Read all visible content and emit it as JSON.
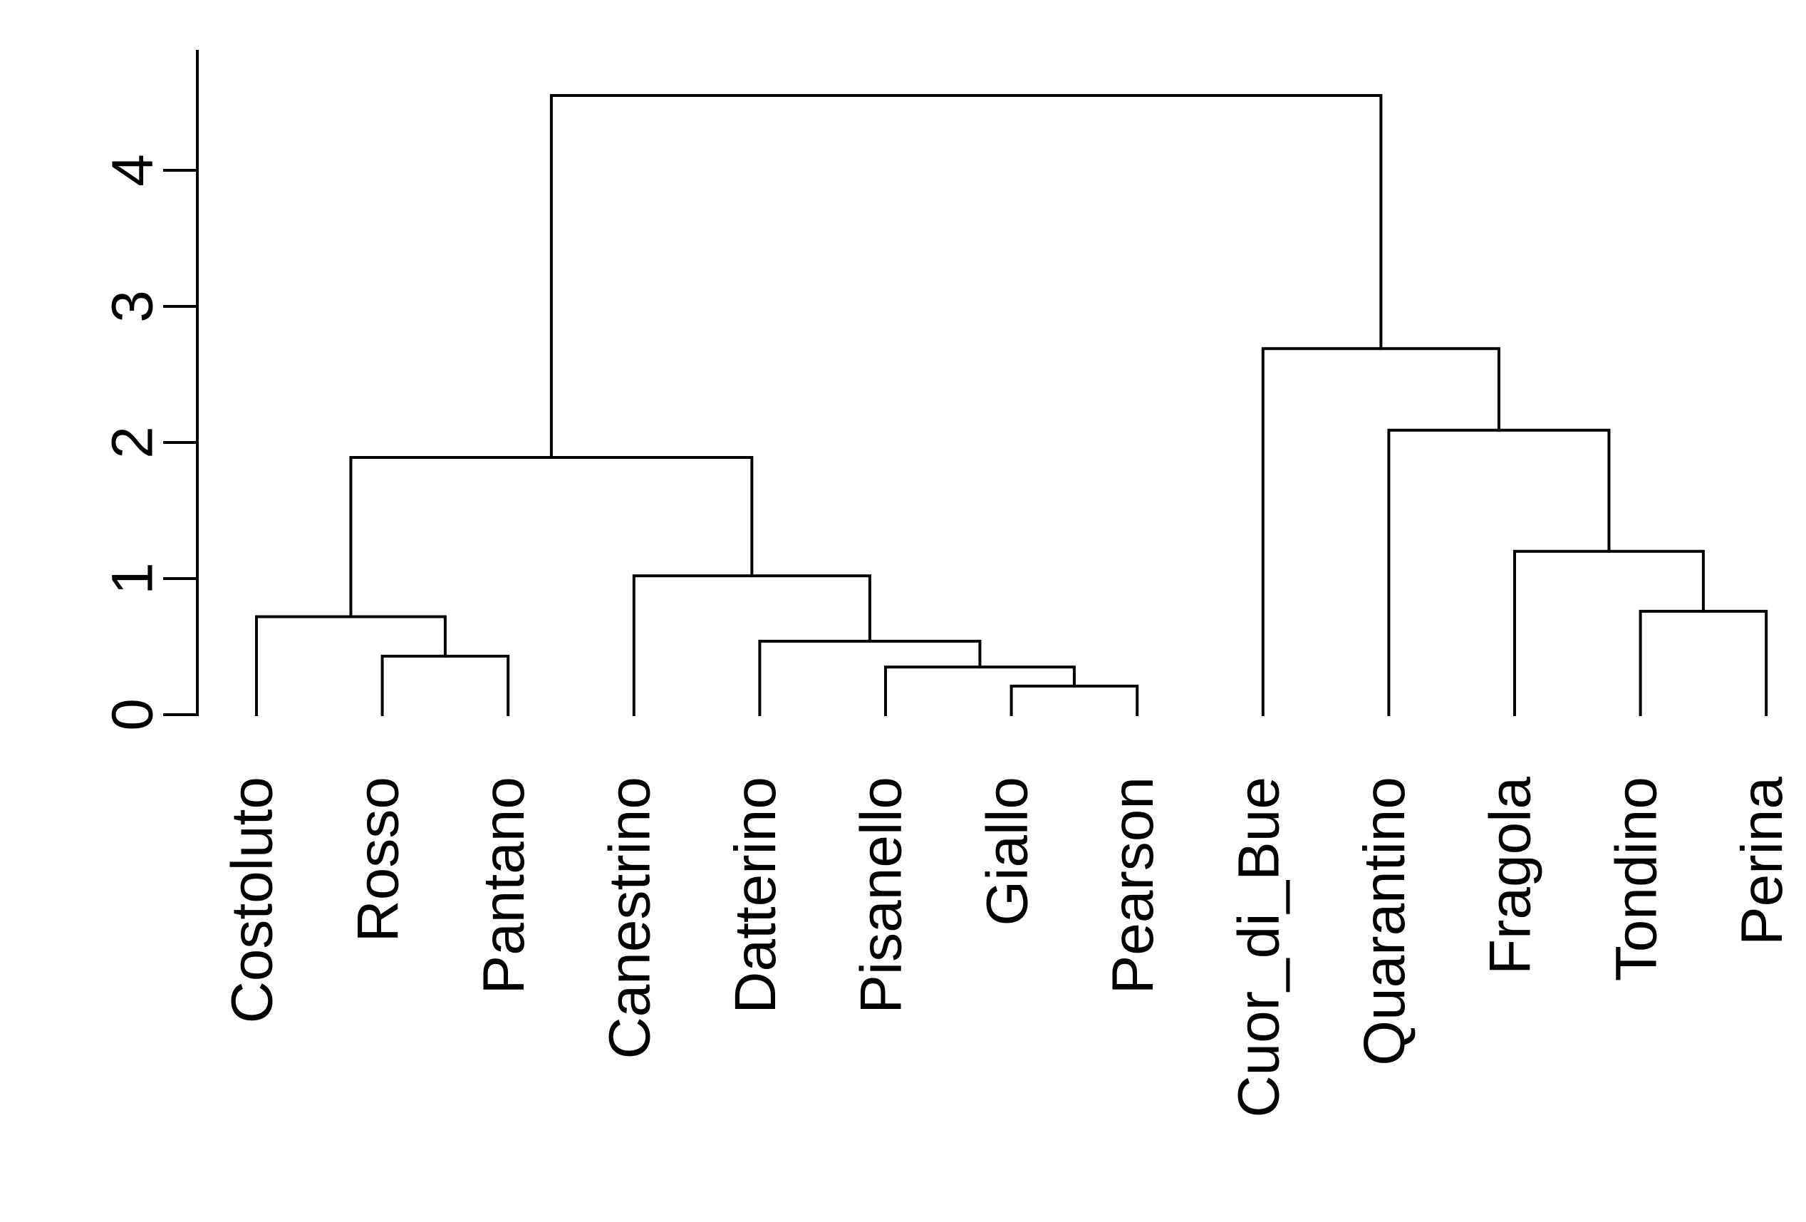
{
  "chart_data": {
    "type": "dendrogram",
    "title": "",
    "xlabel": "",
    "ylabel": "",
    "ylim": [
      0,
      4.9
    ],
    "y_ticks": [
      0,
      1,
      2,
      3,
      4
    ],
    "y_tick_labels": [
      "0",
      "1",
      "2",
      "3",
      "4"
    ],
    "leaves": [
      "Costoluto",
      "Rosso",
      "Pantano",
      "Canestrino",
      "Datterino",
      "Pisanello",
      "Giallo",
      "Pearson",
      "Cuor_di_Bue",
      "Quarantino",
      "Fragola",
      "Tondino",
      "Perina"
    ],
    "merges": [
      {
        "id": "m1",
        "left": "Giallo",
        "right": "Pearson",
        "height": 0.21
      },
      {
        "id": "m2",
        "left": "Pisanello",
        "right": "m1",
        "height": 0.35
      },
      {
        "id": "m3",
        "left": "Rosso",
        "right": "Pantano",
        "height": 0.43
      },
      {
        "id": "m4",
        "left": "Datterino",
        "right": "m2",
        "height": 0.54
      },
      {
        "id": "m5",
        "left": "Costoluto",
        "right": "m3",
        "height": 0.72
      },
      {
        "id": "m6",
        "left": "Tondino",
        "right": "Perina",
        "height": 0.76
      },
      {
        "id": "m7",
        "left": "Canestrino",
        "right": "m4",
        "height": 1.02
      },
      {
        "id": "m8",
        "left": "Fragola",
        "right": "m6",
        "height": 1.2
      },
      {
        "id": "m9",
        "left": "m5",
        "right": "m7",
        "height": 1.89
      },
      {
        "id": "m10",
        "left": "Quarantino",
        "right": "m8",
        "height": 2.09
      },
      {
        "id": "m11",
        "left": "Cuor_di_Bue",
        "right": "m10",
        "height": 2.69
      },
      {
        "id": "m12",
        "left": "m9",
        "right": "m11",
        "height": 4.55
      }
    ]
  }
}
